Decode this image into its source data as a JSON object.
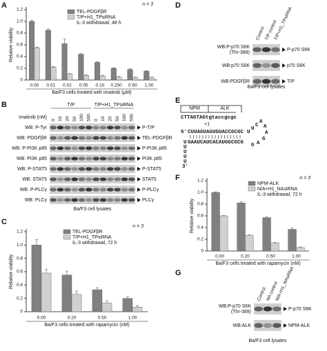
{
  "panel_letters": [
    "A",
    "B",
    "C",
    "D",
    "E",
    "F",
    "G"
  ],
  "chart_data": [
    {
      "type": "bar",
      "ylabel": "Relative viability",
      "xlabel": "Ba/F3 cells treated with imatinib (μM)",
      "annotation": "n = 3",
      "legend_note": "IL-3 withdrawal, 48 h",
      "categories": [
        "0.00",
        "0.01",
        "0.02",
        "0.05",
        "0.10",
        "0.250",
        "0.50",
        "1.00"
      ],
      "series": [
        {
          "name": "TEL-PDGFβR",
          "color": "#808080",
          "values": [
            1.0,
            0.85,
            0.62,
            0.44,
            0.3,
            0.2,
            0.18,
            0.15
          ],
          "errors": [
            0.02,
            0.02,
            0.08,
            0.01,
            0.01,
            0.01,
            0.01,
            0.01
          ]
        },
        {
          "name": "T/P+H1_TPsiRNA",
          "color": "#d0d0d0",
          "values": [
            0.55,
            0.22,
            0.1,
            0.08,
            0.07,
            0.05,
            0.04,
            0.04
          ],
          "errors": [
            0.01,
            0.01,
            0.01,
            0.01,
            0.01,
            0.01,
            0.01,
            0.01
          ]
        }
      ],
      "ylim": [
        0,
        1.2
      ],
      "yticks": [
        0,
        0.2,
        0.4,
        0.6,
        0.8,
        {
          "value": 1,
          "label": "1.0"
        },
        1.2
      ]
    },
    {
      "type": "bar",
      "ylabel": "Relative viability",
      "xlabel": "Ba/F3 cells treated with rapamycin (nM)",
      "annotation": "n = 3",
      "legend_note": "IL-3 withdrawal, 72 h",
      "categories": [
        "0.00",
        "0.20",
        "0.50",
        "1.00"
      ],
      "series": [
        {
          "name": "TEL-PDGFβR",
          "color": "#808080",
          "values": [
            1.0,
            0.55,
            0.33,
            0.2
          ],
          "errors": [
            0.08,
            0.06,
            0.03,
            0.02
          ]
        },
        {
          "name": "T/P+H1_TPsiRNA",
          "color": "#d0d0d0",
          "values": [
            0.58,
            0.26,
            0.13,
            0.07
          ],
          "errors": [
            0.06,
            0.05,
            0.03,
            0.02
          ]
        }
      ],
      "ylim": [
        0,
        1.2
      ],
      "yticks": [
        0,
        0.2,
        0.4,
        0.6,
        0.8,
        {
          "value": 1,
          "label": "1.0"
        },
        1.2
      ]
    },
    {
      "type": "bar",
      "ylabel": "Relative viability",
      "xlabel": "Ba/F3 cells treated with rapamycin (nM)",
      "annotation": "n = 3",
      "legend_note": "IL-3 withdrawal, 72 h",
      "categories": [
        "0.00",
        "0.20",
        "0.50",
        "1.00"
      ],
      "series": [
        {
          "name": "NPM-ALK",
          "color": "#808080",
          "values": [
            1.0,
            0.82,
            0.57,
            0.37
          ],
          "errors": [
            0.01,
            0.02,
            0.01,
            0.02
          ]
        },
        {
          "name": "N/A+H1_NAsiRNA",
          "color": "#d0d0d0",
          "values": [
            0.6,
            0.27,
            0.14,
            0.06
          ],
          "errors": [
            0.01,
            0.01,
            0.01,
            0.01
          ]
        }
      ],
      "ylim": [
        0,
        1.2
      ],
      "yticks": [
        0,
        0.2,
        0.4,
        0.6,
        0.8,
        {
          "value": 1,
          "label": "1.0"
        },
        1.2
      ]
    }
  ],
  "blot_b": {
    "lane_title": "Imatinib (nM)",
    "groups": [
      {
        "name": "T/P",
        "lanes": [
          "0",
          "10",
          "20",
          "50",
          "100",
          "500"
        ]
      },
      {
        "name": "T/P+H1_TPsiRNA",
        "lanes": [
          "0",
          "10",
          "20",
          "50",
          "100",
          "500"
        ]
      }
    ],
    "rows": [
      {
        "label": [
          "WB: P-Tyr"
        ],
        "target": "P-T/P"
      },
      {
        "label": [
          "WB: PDGFβR"
        ],
        "target": "TEL-PDGFβR"
      },
      {
        "label": [
          "WB: P-PI3K p85"
        ],
        "target": "P-PI3K p85"
      },
      {
        "label": [
          "WB: PI3K p85"
        ],
        "target": "PI3K p85"
      },
      {
        "label": [
          "WB: P-STAT5"
        ],
        "target": "P-STAT5"
      },
      {
        "label": [
          "WB: STAT5"
        ],
        "target": "STAT5"
      },
      {
        "label": [
          "WB: P-PLCγ"
        ],
        "target": "P-PLCγ"
      },
      {
        "label": [
          "WB: PLCγ"
        ],
        "target": "PLCγ"
      }
    ],
    "footer": "Ba/F3 cell lysates"
  },
  "blot_d": {
    "groups": [
      {
        "lanes": [
          "Control",
          "T/P control",
          "T/P+H1_TPsiRNA"
        ]
      }
    ],
    "rows": [
      {
        "label": [
          "WB:P-p70 S6K",
          "(Thr-389)"
        ],
        "target": "P-p70 S6K"
      },
      {
        "label": [
          "WB:p70 S6K"
        ],
        "target": "p70 S6K"
      },
      {
        "label": [
          "WB:PDGFβR"
        ],
        "target": "T/P"
      }
    ],
    "footer": "Ba/F3 cell lysates"
  },
  "sequence_e": {
    "header": [
      "NPM",
      "ALK"
    ],
    "plus_one": "+1",
    "dna": "CTTAGTAGtgtaccgcgc",
    "five_prime": "5'",
    "top": "CUUAGUAGUGUACCGCGC",
    "loop": [
      "U",
      "U",
      "C",
      "A",
      "A",
      "A",
      "G",
      "A",
      "G"
    ],
    "bottom": "GAAUCAUCACAUGGCGCG",
    "tail": [
      "U",
      "U",
      "U",
      "U",
      "U"
    ],
    "three_prime": "3'"
  },
  "blot_g": {
    "groups": [
      {
        "lanes": [
          "Control",
          "NA control",
          "N/A+H1_NAsiRNA"
        ]
      }
    ],
    "rows": [
      {
        "label": [
          "WB:P-p70 S6K",
          "(Thr-389)"
        ],
        "target": "P-p70 S6K"
      },
      {
        "label": [
          "WB:ALK"
        ],
        "target": "NPM-ALK"
      }
    ],
    "footer": "Ba/F3 cell lysates"
  }
}
